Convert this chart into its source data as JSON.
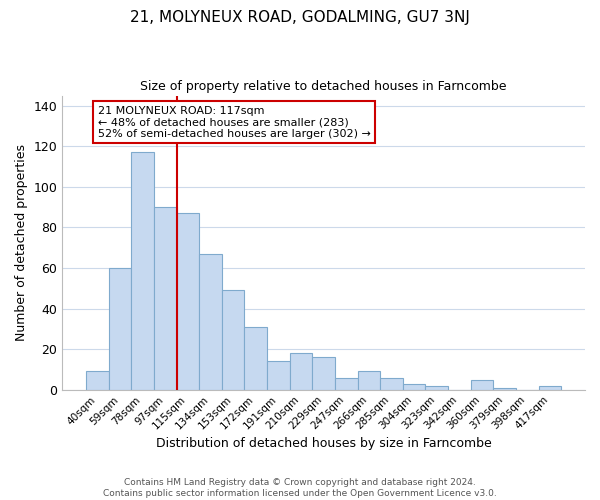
{
  "title": "21, MOLYNEUX ROAD, GODALMING, GU7 3NJ",
  "subtitle": "Size of property relative to detached houses in Farncombe",
  "xlabel": "Distribution of detached houses by size in Farncombe",
  "ylabel": "Number of detached properties",
  "footer_line1": "Contains HM Land Registry data © Crown copyright and database right 2024.",
  "footer_line2": "Contains public sector information licensed under the Open Government Licence v3.0.",
  "categories": [
    "40sqm",
    "59sqm",
    "78sqm",
    "97sqm",
    "115sqm",
    "134sqm",
    "153sqm",
    "172sqm",
    "191sqm",
    "210sqm",
    "229sqm",
    "247sqm",
    "266sqm",
    "285sqm",
    "304sqm",
    "323sqm",
    "342sqm",
    "360sqm",
    "379sqm",
    "398sqm",
    "417sqm"
  ],
  "values": [
    9,
    60,
    117,
    90,
    87,
    67,
    49,
    31,
    14,
    18,
    16,
    6,
    9,
    6,
    3,
    2,
    0,
    5,
    1,
    0,
    2
  ],
  "bar_color": "#c6d9f0",
  "bar_edge_color": "#7faacd",
  "vline_x": 3.5,
  "vline_color": "#cc0000",
  "annotation_title": "21 MOLYNEUX ROAD: 117sqm",
  "annotation_line1": "← 48% of detached houses are smaller (283)",
  "annotation_line2": "52% of semi-detached houses are larger (302) →",
  "ylim": [
    0,
    145
  ],
  "yticks": [
    0,
    20,
    40,
    60,
    80,
    100,
    120,
    140
  ],
  "background_color": "#ffffff",
  "grid_color": "#ccd9ea"
}
